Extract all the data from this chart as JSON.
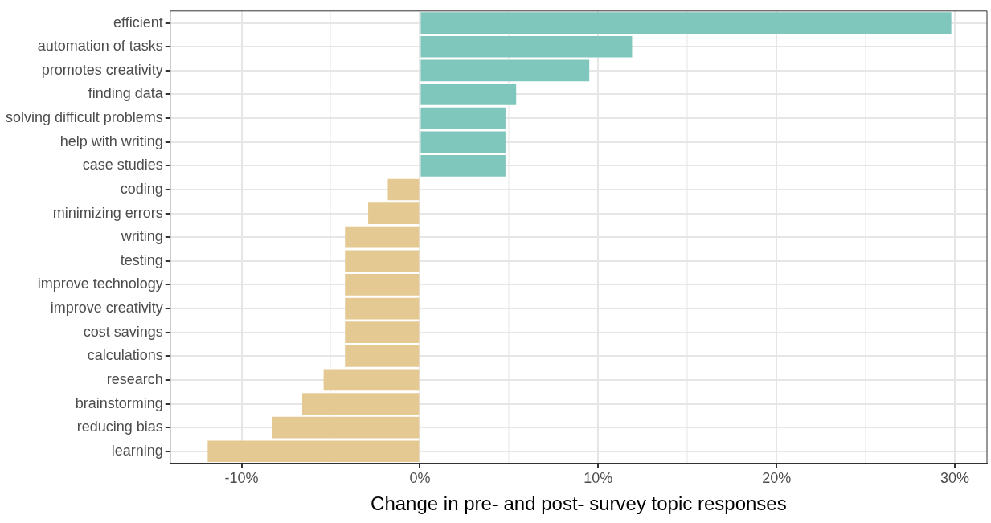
{
  "chart_data": {
    "type": "bar",
    "orientation": "horizontal",
    "xlabel": "Change in pre- and post- survey topic responses",
    "categories": [
      "efficient",
      "automation of tasks",
      "promotes creativity",
      "finding data",
      "solving difficult problems",
      "help with writing",
      "case studies",
      "coding",
      "minimizing errors",
      "writing",
      "testing",
      "improve technology",
      "improve creativity",
      "cost savings",
      "calculations",
      "research",
      "brainstorming",
      "reducing bias",
      "learning"
    ],
    "values": [
      29.8,
      11.9,
      9.5,
      5.4,
      4.8,
      4.8,
      4.8,
      -1.8,
      -2.9,
      -4.2,
      -4.2,
      -4.2,
      -4.2,
      -4.2,
      -4.2,
      -5.4,
      -6.6,
      -8.3,
      -11.9
    ],
    "colors": [
      "#7fc6bd",
      "#7fc6bd",
      "#7fc6bd",
      "#7fc6bd",
      "#7fc6bd",
      "#7fc6bd",
      "#7fc6bd",
      "#e5c993",
      "#e5c993",
      "#e5c993",
      "#e5c993",
      "#e5c993",
      "#e5c993",
      "#e5c993",
      "#e5c993",
      "#e5c993",
      "#e5c993",
      "#e5c993",
      "#e5c993"
    ],
    "xlim": [
      -14,
      31.8
    ],
    "xticks": [
      {
        "value": -10,
        "label": "-10%"
      },
      {
        "value": -5,
        "label": null
      },
      {
        "value": 0,
        "label": "0%"
      },
      {
        "value": 5,
        "label": null
      },
      {
        "value": 10,
        "label": "10%"
      },
      {
        "value": 15,
        "label": null
      },
      {
        "value": 20,
        "label": "20%"
      },
      {
        "value": 25,
        "label": null
      },
      {
        "value": 30,
        "label": "30%"
      }
    ],
    "grid": true,
    "legend": false
  }
}
